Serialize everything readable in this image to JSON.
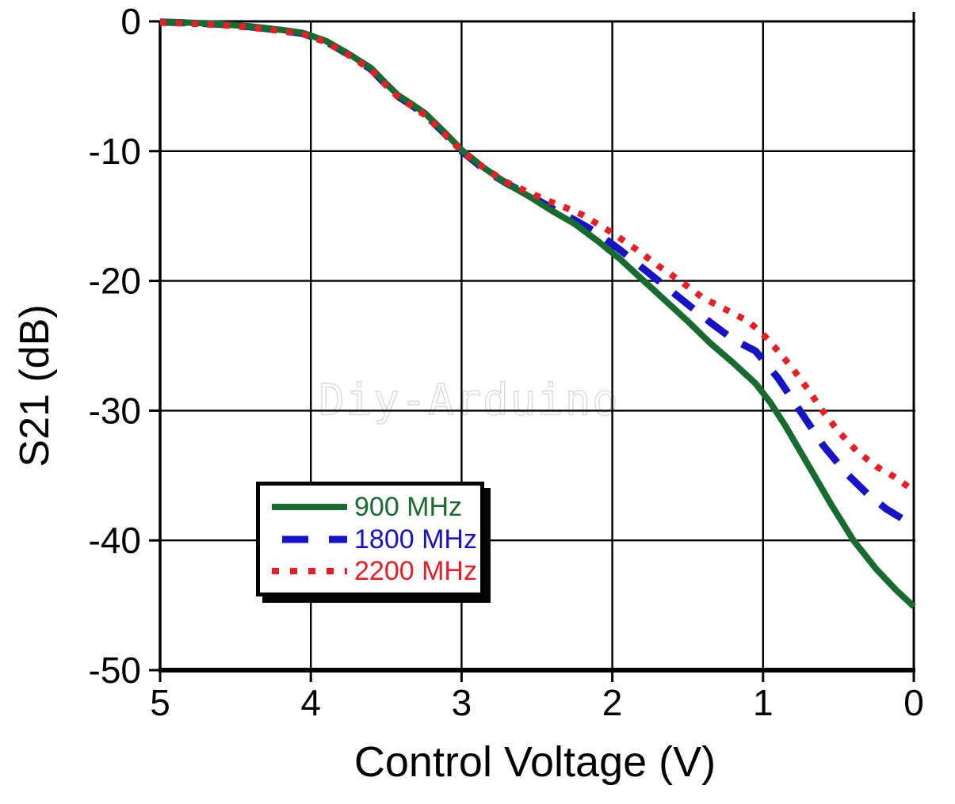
{
  "watermark": {
    "text": "Diy-Arduino"
  },
  "chart_data": {
    "type": "line",
    "title": "",
    "xlabel": "Control Voltage (V)",
    "ylabel": "S21 (dB)",
    "grid": "on",
    "axis_color": "#000000",
    "x_axis": {
      "ticks": [
        5,
        4,
        3,
        2,
        1,
        0
      ],
      "reversed": true,
      "range": [
        5,
        0
      ]
    },
    "y_axis": {
      "ticks": [
        0,
        -10,
        -20,
        -30,
        -40,
        -50
      ],
      "range": [
        0,
        -50
      ]
    },
    "legend": {
      "position": "bottom-left",
      "entries": [
        {
          "label": "900 MHz",
          "color": "#186b2e",
          "style": "solid"
        },
        {
          "label": "1800 MHz",
          "color": "#1612c8",
          "style": "dashed"
        },
        {
          "label": "2200 MHz",
          "color": "#ea1c24",
          "style": "dotted"
        }
      ]
    },
    "series": [
      {
        "name": "900 MHz",
        "color": "#186b2e",
        "style": "solid",
        "points": [
          [
            5.0,
            -0.05
          ],
          [
            4.8,
            -0.1
          ],
          [
            4.6,
            -0.2
          ],
          [
            4.4,
            -0.4
          ],
          [
            4.2,
            -0.65
          ],
          [
            4.05,
            -0.9
          ],
          [
            3.9,
            -1.5
          ],
          [
            3.75,
            -2.5
          ],
          [
            3.6,
            -3.6
          ],
          [
            3.5,
            -4.8
          ],
          [
            3.42,
            -5.7
          ],
          [
            3.34,
            -6.3
          ],
          [
            3.24,
            -7.1
          ],
          [
            3.1,
            -8.7
          ],
          [
            3.0,
            -9.9
          ],
          [
            2.85,
            -11.3
          ],
          [
            2.7,
            -12.5
          ],
          [
            2.55,
            -13.5
          ],
          [
            2.4,
            -14.6
          ],
          [
            2.25,
            -15.6
          ],
          [
            2.1,
            -16.9
          ],
          [
            1.95,
            -18.3
          ],
          [
            1.8,
            -19.9
          ],
          [
            1.65,
            -21.5
          ],
          [
            1.5,
            -23.1
          ],
          [
            1.35,
            -24.8
          ],
          [
            1.2,
            -26.3
          ],
          [
            1.05,
            -27.9
          ],
          [
            0.95,
            -29.4
          ],
          [
            0.85,
            -31.2
          ],
          [
            0.7,
            -34.2
          ],
          [
            0.55,
            -37.2
          ],
          [
            0.4,
            -40.0
          ],
          [
            0.25,
            -42.2
          ],
          [
            0.12,
            -43.8
          ],
          [
            0.0,
            -45.1
          ]
        ]
      },
      {
        "name": "1800 MHz",
        "color": "#1612c8",
        "style": "dashed",
        "points": [
          [
            5.0,
            -0.05
          ],
          [
            4.8,
            -0.12
          ],
          [
            4.6,
            -0.22
          ],
          [
            4.4,
            -0.42
          ],
          [
            4.2,
            -0.68
          ],
          [
            4.05,
            -0.95
          ],
          [
            3.9,
            -1.55
          ],
          [
            3.75,
            -2.55
          ],
          [
            3.6,
            -3.7
          ],
          [
            3.5,
            -4.9
          ],
          [
            3.42,
            -5.8
          ],
          [
            3.34,
            -6.4
          ],
          [
            3.24,
            -7.2
          ],
          [
            3.1,
            -8.8
          ],
          [
            3.0,
            -10.0
          ],
          [
            2.85,
            -11.4
          ],
          [
            2.7,
            -12.5
          ],
          [
            2.55,
            -13.4
          ],
          [
            2.4,
            -14.4
          ],
          [
            2.25,
            -15.3
          ],
          [
            2.1,
            -16.3
          ],
          [
            1.95,
            -17.6
          ],
          [
            1.8,
            -19.0
          ],
          [
            1.65,
            -20.4
          ],
          [
            1.5,
            -21.8
          ],
          [
            1.35,
            -23.2
          ],
          [
            1.2,
            -24.5
          ],
          [
            1.05,
            -25.4
          ],
          [
            0.9,
            -27.5
          ],
          [
            0.75,
            -30.1
          ],
          [
            0.6,
            -32.7
          ],
          [
            0.45,
            -34.8
          ],
          [
            0.3,
            -36.5
          ],
          [
            0.18,
            -37.6
          ],
          [
            0.08,
            -38.3
          ]
        ]
      },
      {
        "name": "2200 MHz",
        "color": "#ea1c24",
        "style": "dotted",
        "points": [
          [
            5.0,
            -0.1
          ],
          [
            4.8,
            -0.17
          ],
          [
            4.6,
            -0.28
          ],
          [
            4.4,
            -0.48
          ],
          [
            4.2,
            -0.73
          ],
          [
            4.05,
            -1.0
          ],
          [
            3.9,
            -1.6
          ],
          [
            3.75,
            -2.6
          ],
          [
            3.6,
            -3.75
          ],
          [
            3.5,
            -4.95
          ],
          [
            3.42,
            -5.85
          ],
          [
            3.34,
            -6.45
          ],
          [
            3.24,
            -7.25
          ],
          [
            3.1,
            -8.85
          ],
          [
            3.0,
            -10.0
          ],
          [
            2.85,
            -11.3
          ],
          [
            2.7,
            -12.4
          ],
          [
            2.55,
            -13.2
          ],
          [
            2.43,
            -13.8
          ],
          [
            2.3,
            -14.4
          ],
          [
            2.2,
            -14.9
          ],
          [
            2.1,
            -15.6
          ],
          [
            2.0,
            -16.3
          ],
          [
            1.85,
            -17.5
          ],
          [
            1.7,
            -18.8
          ],
          [
            1.55,
            -20.0
          ],
          [
            1.4,
            -21.3
          ],
          [
            1.25,
            -22.2
          ],
          [
            1.1,
            -23.1
          ],
          [
            1.0,
            -24.1
          ],
          [
            0.9,
            -25.4
          ],
          [
            0.8,
            -26.8
          ],
          [
            0.7,
            -28.4
          ],
          [
            0.6,
            -30.1
          ],
          [
            0.5,
            -31.6
          ],
          [
            0.38,
            -33.1
          ],
          [
            0.25,
            -34.3
          ],
          [
            0.13,
            -35.1
          ],
          [
            0.02,
            -36.0
          ]
        ]
      }
    ]
  }
}
